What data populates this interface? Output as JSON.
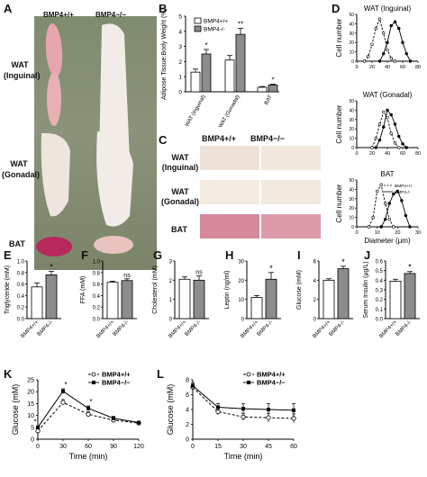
{
  "labels": {
    "A": "A",
    "B": "B",
    "C": "C",
    "D": "D",
    "E": "E",
    "F": "F",
    "G": "G",
    "H": "H",
    "I": "I",
    "J": "J",
    "K": "K",
    "L": "L"
  },
  "panelA": {
    "col_wt": "BMP4+/+",
    "col_ko": "BMP4−/−",
    "row1": "WAT",
    "row1b": "(Inguinal)",
    "row2": "WAT",
    "row2b": "(Gonadal)",
    "row3": "BAT"
  },
  "panelC": {
    "col_wt": "BMP4+/+",
    "col_ko": "BMP4−/−",
    "row1": "WAT",
    "row1b": "(Inguinal)",
    "row2": "WAT",
    "row2b": "(Gonadal)",
    "row3": "BAT"
  },
  "chart_data": [
    {
      "id": "B",
      "type": "bar",
      "categories": [
        "WAT (Inguinal)",
        "WAT (Gonadal)",
        "BAT"
      ],
      "series": [
        {
          "name": "BMP4+/+",
          "values": [
            1.3,
            2.1,
            0.3
          ],
          "err": [
            0.2,
            0.3,
            0.05
          ]
        },
        {
          "name": "BMP4-/-",
          "values": [
            2.5,
            3.8,
            0.45
          ],
          "err": [
            0.3,
            0.4,
            0.05
          ]
        }
      ],
      "sig": [
        "*",
        "**",
        "*"
      ],
      "ylabel": "Adipose Tissue:Body Weight (%)",
      "ylim": [
        0,
        5
      ],
      "yticks": [
        0,
        1,
        2,
        3,
        4,
        5
      ]
    },
    {
      "id": "D1",
      "type": "line",
      "title": "WAT (Inguinal)",
      "xlim": [
        0,
        80
      ],
      "ylim": [
        0,
        50
      ],
      "xticks": [
        0,
        20,
        40,
        60,
        80
      ],
      "yticks": [
        0,
        10,
        20,
        30,
        40,
        50
      ],
      "ylabel": "Cell number",
      "series": [
        {
          "name": "BMP4+/+",
          "x": [
            10,
            15,
            20,
            25,
            30,
            35,
            40,
            45,
            50
          ],
          "y": [
            0,
            5,
            18,
            35,
            45,
            30,
            12,
            3,
            0
          ],
          "dash": true
        },
        {
          "name": "BMP4-/-",
          "x": [
            30,
            35,
            40,
            45,
            50,
            55,
            60,
            65,
            70
          ],
          "y": [
            0,
            8,
            20,
            38,
            42,
            35,
            20,
            8,
            0
          ],
          "dash": false
        }
      ]
    },
    {
      "id": "D2",
      "type": "line",
      "title": "WAT (Gonadal)",
      "xlim": [
        0,
        80
      ],
      "ylim": [
        0,
        50
      ],
      "xticks": [
        0,
        20,
        40,
        60,
        80
      ],
      "yticks": [
        0,
        10,
        20,
        30,
        40,
        50
      ],
      "ylabel": "Cell number",
      "series": [
        {
          "name": "BMP4+/+",
          "x": [
            20,
            25,
            30,
            35,
            40,
            45,
            50,
            55
          ],
          "y": [
            0,
            10,
            25,
            38,
            32,
            15,
            5,
            0
          ],
          "dash": true
        },
        {
          "name": "BMP4-/-",
          "x": [
            25,
            30,
            35,
            40,
            45,
            50,
            55,
            60,
            65
          ],
          "y": [
            0,
            8,
            22,
            40,
            35,
            25,
            12,
            4,
            0
          ],
          "dash": false
        }
      ]
    },
    {
      "id": "D3",
      "type": "line",
      "title": "BAT",
      "xlim": [
        0,
        30
      ],
      "ylim": [
        0,
        50
      ],
      "xticks": [
        0,
        10,
        20,
        30
      ],
      "yticks": [
        0,
        10,
        20,
        30,
        40,
        50
      ],
      "ylabel": "Cell number",
      "xlabel": "Diameter (μm)",
      "legend": [
        "BMP4+/+",
        "BMP4-/-"
      ],
      "series": [
        {
          "name": "BMP4+/+",
          "x": [
            6,
            8,
            10,
            12,
            14,
            16,
            18
          ],
          "y": [
            0,
            10,
            38,
            45,
            25,
            8,
            0
          ],
          "dash": true
        },
        {
          "name": "BMP4-/-",
          "x": [
            12,
            14,
            16,
            18,
            20,
            22,
            24,
            26
          ],
          "y": [
            0,
            8,
            25,
            35,
            38,
            28,
            12,
            0
          ],
          "dash": false
        }
      ]
    },
    {
      "id": "E",
      "type": "bar",
      "ylabel": "Triglyceride (mM)",
      "ylim": [
        0,
        1.0
      ],
      "yticks": [
        0,
        0.2,
        0.4,
        0.6,
        0.8,
        1.0
      ],
      "yticklabels": [
        "0.0",
        "0.2",
        "0.4",
        "0.6",
        "0.8",
        "1.0"
      ],
      "categories": [
        "BMP4+/+",
        "BMP4-/-"
      ],
      "values": [
        0.55,
        0.76
      ],
      "err": [
        0.07,
        0.06
      ],
      "sig": "*"
    },
    {
      "id": "F",
      "type": "bar",
      "ylabel": "FFA (mM)",
      "ylim": [
        0,
        1.0
      ],
      "yticks": [
        0,
        0.2,
        0.4,
        0.6,
        0.8,
        1.0
      ],
      "yticklabels": [
        "0.0",
        "0.2",
        "0.4",
        "0.6",
        "0.8",
        "1.0"
      ],
      "categories": [
        "BMP4+/+",
        "BMP4-/-"
      ],
      "values": [
        0.63,
        0.66
      ],
      "err": [
        0.02,
        0.03
      ],
      "sig": "ns"
    },
    {
      "id": "G",
      "type": "bar",
      "ylabel": "Cholesterol (mM)",
      "ylim": [
        0,
        3
      ],
      "yticks": [
        0,
        1,
        2,
        3
      ],
      "yticklabels": [
        "0",
        "1",
        "2",
        "3"
      ],
      "categories": [
        "BMP4+/+",
        "BMP4-/-"
      ],
      "values": [
        2.05,
        2.0
      ],
      "err": [
        0.12,
        0.22
      ],
      "sig": "ns"
    },
    {
      "id": "H",
      "type": "bar",
      "ylabel": "Leptin (ng/ml)",
      "ylim": [
        0,
        30
      ],
      "yticks": [
        0,
        10,
        20,
        30
      ],
      "yticklabels": [
        "0",
        "10",
        "20",
        "30"
      ],
      "categories": [
        "BMP4+/+",
        "BMP4-/-"
      ],
      "values": [
        11,
        20.5
      ],
      "err": [
        1.0,
        3.5
      ],
      "sig": "*"
    },
    {
      "id": "I",
      "type": "bar",
      "ylabel": "Glucose (mM)",
      "ylim": [
        0,
        6
      ],
      "yticks": [
        0,
        2,
        4,
        6
      ],
      "yticklabels": [
        "0",
        "2",
        "4",
        "6"
      ],
      "categories": [
        "BMP4+/+",
        "BMP4-/-"
      ],
      "values": [
        4.0,
        5.2
      ],
      "err": [
        0.15,
        0.25
      ],
      "sig": "*"
    },
    {
      "id": "J",
      "type": "bar",
      "ylabel": "Serum Insulin (μg/L)",
      "ylim": [
        0,
        0.6
      ],
      "yticks": [
        0,
        0.1,
        0.2,
        0.3,
        0.4,
        0.5,
        0.6
      ],
      "yticklabels": [
        "0.0",
        "0.1",
        "0.2",
        "0.3",
        "0.4",
        "0.5",
        "0.6"
      ],
      "categories": [
        "BMP4+/+",
        "BMP4-/-"
      ],
      "values": [
        0.39,
        0.47
      ],
      "err": [
        0.02,
        0.02
      ],
      "sig": "*"
    },
    {
      "id": "K",
      "type": "line",
      "ylabel": "Glucose (mM)",
      "xlabel": "Time (min)",
      "xlim": [
        0,
        120
      ],
      "ylim": [
        0,
        25
      ],
      "xticks": [
        0,
        30,
        60,
        90,
        120
      ],
      "yticks": [
        0,
        5,
        10,
        15,
        20,
        25
      ],
      "legend": [
        "BMP4+/+",
        "BMP4−/−"
      ],
      "series": [
        {
          "name": "BMP4+/+",
          "x": [
            0,
            30,
            60,
            90,
            120
          ],
          "y": [
            3.5,
            15.5,
            10.5,
            8.0,
            6.8
          ],
          "err": [
            0.5,
            1.2,
            1.0,
            0.6,
            0.5
          ],
          "dash": true,
          "marker": "open"
        },
        {
          "name": "BMP4-/-",
          "x": [
            0,
            30,
            60,
            90,
            120
          ],
          "y": [
            5.0,
            20.2,
            13.0,
            8.8,
            7.0
          ],
          "err": [
            0.5,
            1.0,
            1.0,
            0.8,
            0.4
          ],
          "dash": false,
          "marker": "filled"
        }
      ],
      "sig": [
        {
          "x": 0,
          "label": "*"
        },
        {
          "x": 30,
          "label": "*"
        },
        {
          "x": 60,
          "label": "*"
        }
      ]
    },
    {
      "id": "L",
      "type": "line",
      "ylabel": "Glucose (mM)",
      "xlabel": "Time (min)",
      "xlim": [
        0,
        60
      ],
      "ylim": [
        0,
        8
      ],
      "xticks": [
        0,
        15,
        30,
        45,
        60
      ],
      "yticks": [
        0,
        2,
        4,
        6,
        8
      ],
      "legend": [
        "BMP4+/+",
        "BMP4−/−"
      ],
      "series": [
        {
          "name": "BMP4+/+",
          "x": [
            0,
            15,
            30,
            45,
            60
          ],
          "y": [
            7.0,
            3.7,
            3.0,
            2.9,
            2.8
          ],
          "err": [
            0.4,
            0.4,
            0.5,
            0.6,
            0.6
          ],
          "dash": true,
          "marker": "open"
        },
        {
          "name": "BMP4-/-",
          "x": [
            0,
            15,
            30,
            45,
            60
          ],
          "y": [
            7.2,
            4.3,
            4.1,
            4.0,
            3.9
          ],
          "err": [
            0.4,
            0.5,
            0.7,
            0.8,
            0.9
          ],
          "dash": false,
          "marker": "filled"
        }
      ]
    }
  ]
}
